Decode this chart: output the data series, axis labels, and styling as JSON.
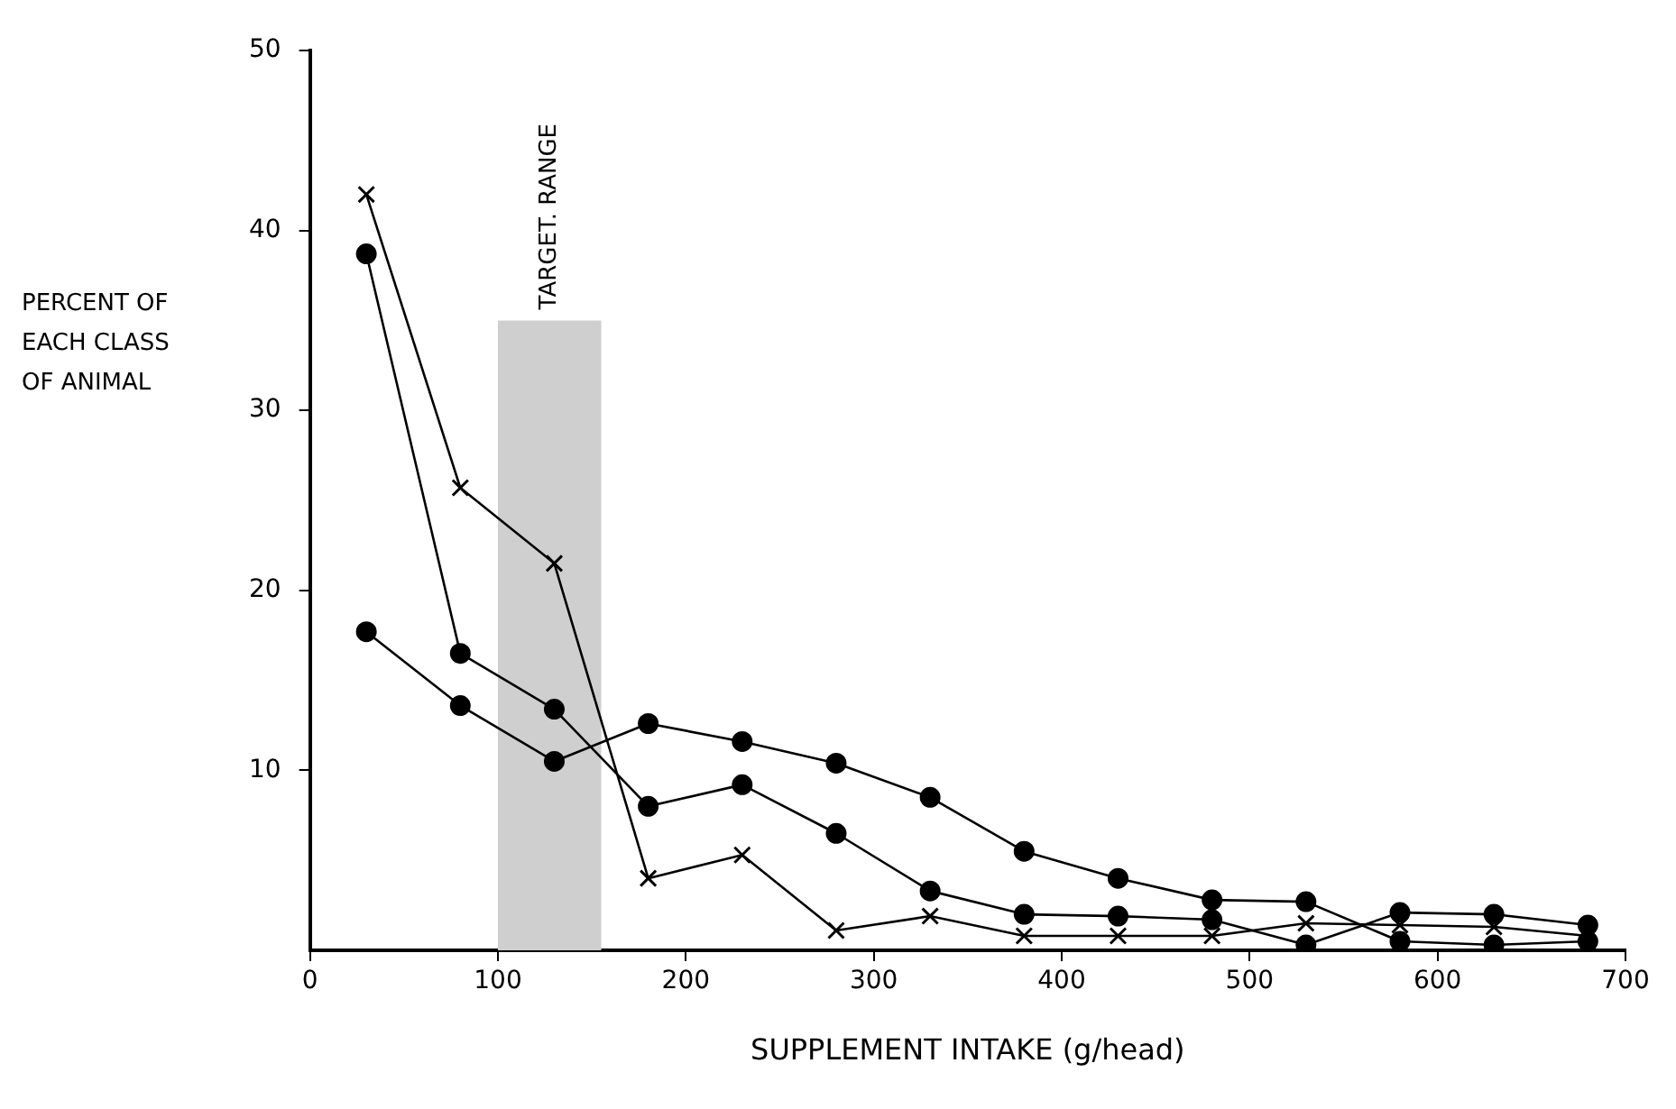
{
  "chart_data": {
    "type": "line",
    "xlabel": "SUPPLEMENT INTAKE (g/head)",
    "ylabel": "PERCENT OF EACH CLASS OF ANIMAL",
    "x": [
      30,
      80,
      130,
      180,
      230,
      280,
      330,
      380,
      430,
      480,
      530,
      580,
      630,
      680
    ],
    "series": [
      {
        "color": "#000000",
        "marker": "cross",
        "values": [
          42,
          25.7,
          21.5,
          4,
          5.3,
          1.1,
          1.9,
          0.8,
          0.8,
          0.8,
          1.5,
          1.4,
          1.3,
          0.8
        ]
      },
      {
        "color": "#000000",
        "marker": "circle",
        "values": [
          38.7,
          16.5,
          13.4,
          8,
          9.2,
          6.5,
          3.3,
          2,
          1.9,
          1.7,
          0.3,
          2.1,
          2,
          1.4
        ]
      },
      {
        "color": "#000000",
        "marker": "circle",
        "values": [
          17.7,
          13.6,
          10.5,
          12.6,
          11.6,
          10.4,
          8.5,
          5.5,
          4,
          2.8,
          2.7,
          0.5,
          0.3,
          0.5
        ]
      }
    ],
    "xlim": [
      0,
      700
    ],
    "xticks": [
      0,
      100,
      200,
      300,
      400,
      500,
      600,
      700
    ],
    "ylim": [
      0,
      50
    ],
    "yticks": [
      10,
      20,
      30,
      40,
      50
    ],
    "bands": [
      {
        "axis": "x",
        "from": 100,
        "to": 155,
        "label": "TARGET. RANGE",
        "color": "#cfcfcf"
      }
    ],
    "grid": false,
    "legend": false
  }
}
